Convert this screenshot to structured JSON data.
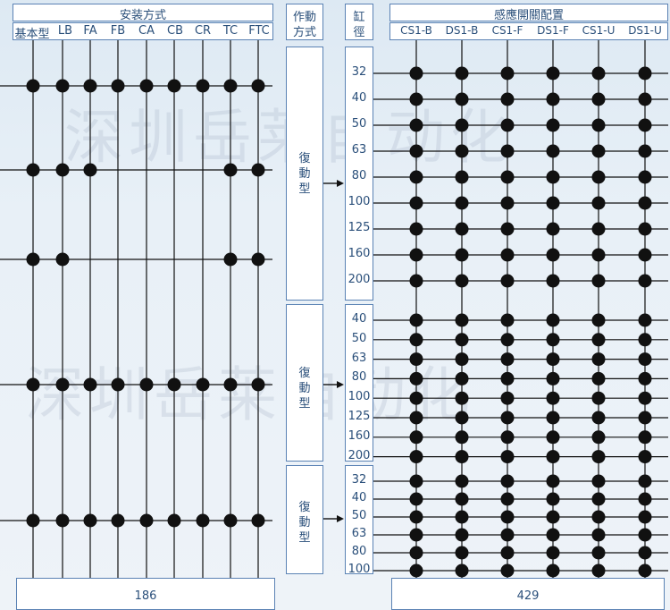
{
  "watermark": "深圳岳莱自动化",
  "header": {
    "mounting_title": "安装方式",
    "mounting_types": [
      "基本型",
      "LB",
      "FA",
      "FB",
      "CA",
      "CB",
      "CR",
      "TC",
      "FTC"
    ],
    "action_title_line1": "作動",
    "action_title_line2": "方式",
    "bore_title_line1": "缸",
    "bore_title_line2": "徑",
    "switch_title": "感應開關配置",
    "switch_types": [
      "CS1-B",
      "DS1-B",
      "CS1-F",
      "DS1-F",
      "CS1-U",
      "DS1-U"
    ]
  },
  "groups": [
    {
      "action": [
        "復",
        "動",
        "型"
      ],
      "bores": [
        "32",
        "40",
        "50",
        "63",
        "80",
        "100",
        "125",
        "160",
        "200"
      ],
      "mount_rows": [
        [
          "基本型",
          "LB",
          "FA",
          "FB",
          "CA",
          "CB",
          "CR",
          "TC",
          "FTC"
        ],
        [
          "基本型",
          "LB",
          "FA",
          "TC",
          "FTC"
        ],
        [
          "基本型",
          "LB",
          "TC",
          "FTC"
        ]
      ]
    },
    {
      "action": [
        "復",
        "動",
        "型"
      ],
      "bores": [
        "40",
        "50",
        "63",
        "80",
        "100",
        "125",
        "160",
        "200"
      ],
      "mount_rows": [
        [
          "基本型",
          "LB",
          "FA",
          "FB",
          "CA",
          "CB",
          "CR",
          "TC",
          "FTC"
        ]
      ]
    },
    {
      "action": [
        "復",
        "動",
        "型"
      ],
      "bores": [
        "32",
        "40",
        "50",
        "63",
        "80",
        "100"
      ],
      "mount_rows": [
        [
          "基本型",
          "LB",
          "FA",
          "FB",
          "CA",
          "CB",
          "CR",
          "TC",
          "FTC"
        ]
      ]
    }
  ],
  "footer": {
    "left_value": "186",
    "right_value": "429"
  }
}
